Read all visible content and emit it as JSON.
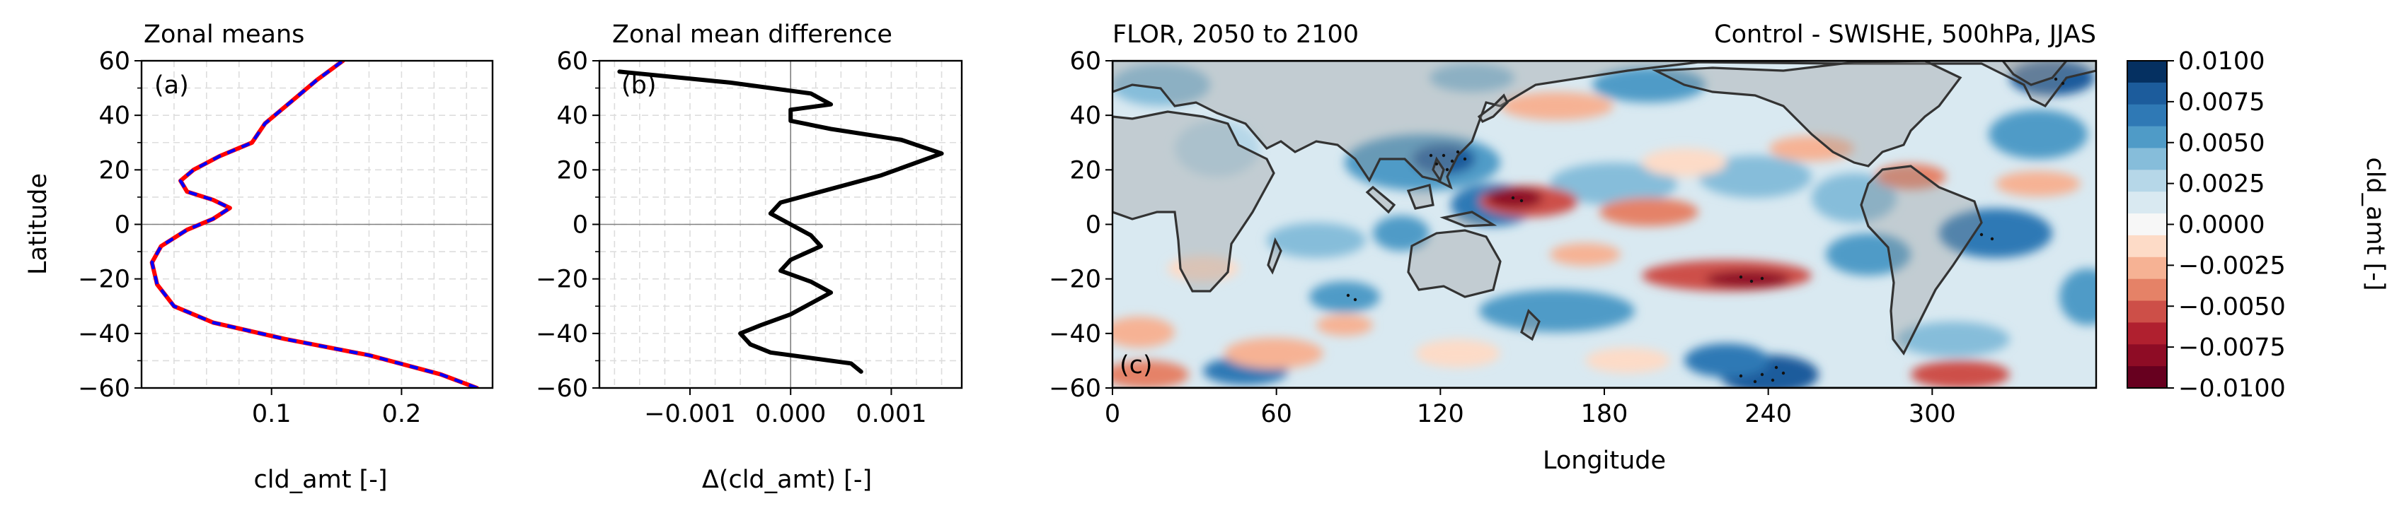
{
  "chart_data": [
    {
      "id": "a",
      "type": "line",
      "title": "Zonal means",
      "panel_label": "(a)",
      "xlabel": "cld_amt [-]",
      "ylabel": "Latitude",
      "xlim": [
        0.0,
        0.27
      ],
      "ylim": [
        -60,
        60
      ],
      "xticks": [
        0.1,
        0.2
      ],
      "xticklabels": [
        "0.1",
        "0.2"
      ],
      "yticks": [
        -60,
        -40,
        -20,
        0,
        20,
        40,
        60
      ],
      "yticklabels": [
        "−60",
        "−40",
        "−20",
        "0",
        "20",
        "40",
        "60"
      ],
      "grid": true,
      "series": [
        {
          "color": "#ff0000",
          "style": "solid",
          "x": [
            0.258,
            0.23,
            0.175,
            0.11,
            0.055,
            0.025,
            0.012,
            0.008,
            0.015,
            0.035,
            0.055,
            0.068,
            0.055,
            0.035,
            0.03,
            0.04,
            0.06,
            0.085,
            0.095,
            0.115,
            0.135,
            0.155
          ],
          "y": [
            -60,
            -55,
            -48,
            -42,
            -36,
            -30,
            -22,
            -14,
            -8,
            -2,
            2,
            6,
            9,
            12,
            16,
            20,
            25,
            30,
            37,
            45,
            53,
            60
          ]
        },
        {
          "color": "#0000ff",
          "style": "dashed",
          "x": [
            0.258,
            0.23,
            0.175,
            0.11,
            0.055,
            0.025,
            0.012,
            0.008,
            0.015,
            0.035,
            0.055,
            0.068,
            0.055,
            0.035,
            0.03,
            0.04,
            0.06,
            0.085,
            0.095,
            0.115,
            0.135,
            0.155
          ],
          "y": [
            -60,
            -55,
            -48,
            -42,
            -36,
            -30,
            -22,
            -14,
            -8,
            -2,
            2,
            6,
            9,
            12,
            16,
            20,
            25,
            30,
            37,
            45,
            53,
            60
          ]
        }
      ]
    },
    {
      "id": "b",
      "type": "line",
      "title": "Zonal mean difference",
      "panel_label": "(b)",
      "xlabel": "Δ(cld_amt) [-]",
      "xlim": [
        -0.0019,
        0.0017
      ],
      "ylim": [
        -60,
        60
      ],
      "xticks": [
        -0.001,
        0.0,
        0.001
      ],
      "xticklabels": [
        "−0.001",
        "0.000",
        "0.001"
      ],
      "yticks": [
        -60,
        -40,
        -20,
        0,
        20,
        40,
        60
      ],
      "yticklabels": [
        "−60",
        "−40",
        "−20",
        "0",
        "20",
        "40",
        "60"
      ],
      "grid": true,
      "series": [
        {
          "color": "#000000",
          "style": "solid",
          "x": [
            0.0007,
            0.0006,
            -0.0002,
            -0.0004,
            -0.0005,
            -0.0003,
            0.0,
            0.0002,
            0.0004,
            0.0002,
            -0.0001,
            0.0,
            0.0003,
            0.0002,
            0.0001,
            0.0,
            -0.0002,
            -0.0001,
            0.0003,
            0.0009,
            0.0015,
            0.0011,
            0.0004,
            0.0,
            0.0,
            0.0004,
            0.0002,
            -0.0006,
            -0.0017
          ],
          "y": [
            -54,
            -51,
            -47,
            -44,
            -40,
            -37,
            -33,
            -29,
            -25,
            -21,
            -17,
            -13,
            -8,
            -4,
            -2,
            0,
            4,
            8,
            12,
            18,
            26,
            31,
            35,
            38,
            42,
            44,
            48,
            52,
            56
          ]
        }
      ]
    },
    {
      "id": "c",
      "type": "heatmap",
      "title": "FLOR, 2050 to 2100",
      "title_right": "Control - SWISHE, 500hPa, JJAS",
      "panel_label": "(c)",
      "xlabel": "Longitude",
      "xlim": [
        0,
        360
      ],
      "ylim": [
        -60,
        60
      ],
      "xticks": [
        0,
        60,
        120,
        180,
        240,
        300
      ],
      "xticklabels": [
        "0",
        "60",
        "120",
        "180",
        "240",
        "300"
      ],
      "yticks": [
        -60,
        -40,
        -20,
        0,
        20,
        40,
        60
      ],
      "yticklabels": [
        "−60",
        "−40",
        "−20",
        "0",
        "20",
        "40",
        "60"
      ],
      "colormap": "RdBu_r",
      "levels": [
        -0.01,
        -0.0075,
        -0.005,
        -0.0025,
        0.0,
        0.0025,
        0.005,
        0.0075,
        0.01
      ],
      "colorbar": {
        "label": "cld_amt [-]",
        "ticklabels": [
          "0.0100",
          "0.0075",
          "0.0050",
          "0.0025",
          "0.0000",
          "−0.0025",
          "−0.0050",
          "−0.0075",
          "−0.0100"
        ],
        "colors": [
          "#053061",
          "#1c5c9c",
          "#2f79b5",
          "#4f9bc7",
          "#86bdda",
          "#b6d7e8",
          "#d9e9f1",
          "#f7f7f7",
          "#fddbc7",
          "#f6b294",
          "#e58267",
          "#cd4f48",
          "#b0202f",
          "#8e0c25",
          "#67001f"
        ]
      }
    }
  ]
}
